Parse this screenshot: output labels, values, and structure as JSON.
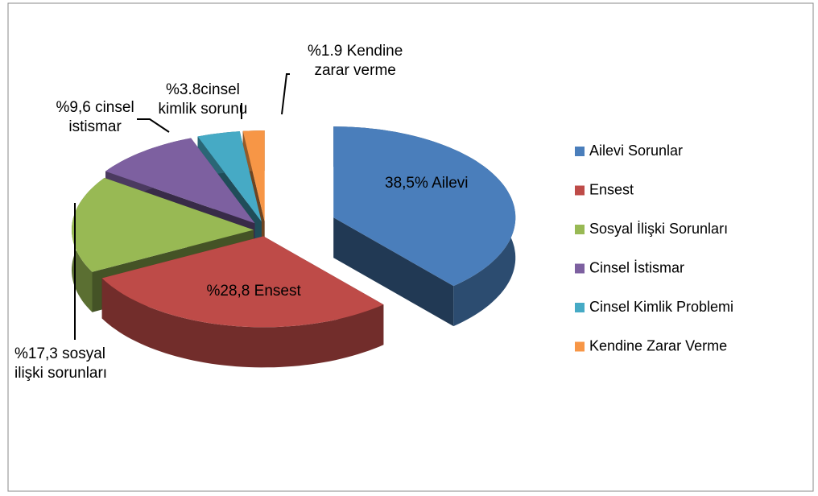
{
  "chart_data": {
    "type": "pie",
    "categories": [
      "Ailevi Sorunlar",
      "Ensest",
      "Sosyal İlişki Sorunları",
      "Cinsel İstismar",
      "Cinsel Kimlik Problemi",
      "Kendine Zarar Verme"
    ],
    "values": [
      38.5,
      28.8,
      17.3,
      9.6,
      3.8,
      1.9
    ],
    "value_labels": [
      "38,5% Ailevi",
      "%28,8 Ensest",
      "%17,3 sosyal\nilişki sorunları",
      "%9,6 cinsel\nistismar",
      "%3.8cinsel\nkimlik sorunu",
      "%1.9 Kendine\nzarar verme"
    ],
    "colors": [
      "#4a7ebb",
      "#be4b48",
      "#98b954",
      "#7d60a0",
      "#46aac5",
      "#f79646"
    ],
    "legend": "right"
  }
}
